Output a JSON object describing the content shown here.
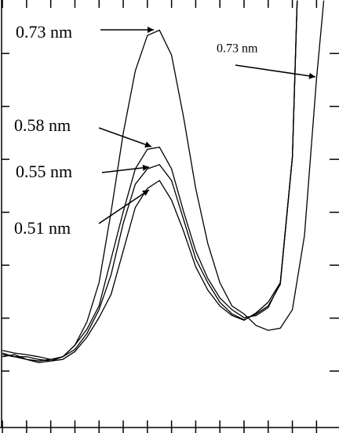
{
  "chart_data": {
    "type": "line",
    "xlim": [
      -0.1,
      13.93
    ],
    "ylim": [
      -0.17,
      8.01
    ],
    "xticks": [
      0,
      1,
      2,
      3,
      4,
      5,
      6,
      7,
      8,
      9,
      10,
      11,
      12,
      13
    ],
    "yticks": [
      1,
      2,
      3,
      4,
      5,
      6,
      7
    ],
    "series": [
      {
        "color": "#000000",
        "x": [
          0,
          0.5,
          1,
          1.5,
          2,
          2.5,
          3,
          3.5,
          4,
          4.5,
          5,
          5.5,
          6,
          6.5,
          7,
          7.5,
          8,
          8.5,
          9,
          9.5,
          10,
          10.5,
          11,
          11.5,
          12,
          12.5,
          13,
          13.3
        ],
        "values": [
          1.39,
          1.34,
          1.31,
          1.27,
          1.22,
          1.27,
          1.49,
          1.93,
          2.67,
          4.01,
          5.49,
          6.67,
          7.34,
          7.44,
          6.97,
          5.79,
          4.45,
          3.41,
          2.67,
          2.23,
          2.08,
          1.86,
          1.77,
          1.81,
          2.16,
          3.56,
          6.53,
          8.0
        ]
      },
      {
        "color": "#000000",
        "x": [
          0,
          0.5,
          1,
          1.5,
          2,
          2.5,
          3,
          3.5,
          4,
          4.5,
          5,
          5.5,
          6,
          6.5,
          7,
          7.5,
          8,
          8.5,
          9,
          9.5,
          10,
          10.5,
          11,
          11.5,
          12,
          12.2
        ],
        "values": [
          1.31,
          1.27,
          1.22,
          1.19,
          1.22,
          1.27,
          1.49,
          1.79,
          2.23,
          3.12,
          4.01,
          4.82,
          5.19,
          5.23,
          4.82,
          4.01,
          3.27,
          2.75,
          2.38,
          2.16,
          2.01,
          2.05,
          2.2,
          2.67,
          5.04,
          8.0
        ]
      },
      {
        "color": "#000000",
        "x": [
          0,
          0.5,
          1,
          1.5,
          2,
          2.5,
          3,
          3.5,
          4,
          4.5,
          5,
          5.5,
          6,
          6.5,
          7,
          7.5,
          8,
          8.5,
          9,
          9.5,
          10,
          10.5,
          11,
          11.5,
          12,
          12.2
        ],
        "values": [
          1.34,
          1.27,
          1.27,
          1.22,
          1.19,
          1.27,
          1.41,
          1.71,
          2.16,
          2.82,
          3.79,
          4.53,
          4.82,
          4.9,
          4.6,
          3.86,
          3.12,
          2.67,
          2.3,
          2.08,
          1.97,
          2.08,
          2.23,
          2.64,
          5.04,
          8.0
        ]
      },
      {
        "color": "#000000",
        "x": [
          0,
          0.5,
          1,
          1.5,
          2,
          2.5,
          3,
          3.5,
          4,
          4.5,
          5,
          5.5,
          6,
          6.5,
          7,
          7.5,
          8,
          8.5,
          9,
          9.5,
          10,
          10.5,
          11,
          11.5,
          12,
          12.2
        ],
        "values": [
          1.27,
          1.31,
          1.22,
          1.16,
          1.19,
          1.22,
          1.37,
          1.64,
          2.01,
          2.45,
          3.27,
          4.09,
          4.45,
          4.6,
          4.23,
          3.64,
          2.97,
          2.53,
          2.23,
          2.05,
          1.96,
          2.1,
          2.3,
          2.67,
          5.04,
          8.0
        ]
      }
    ],
    "annotations": [
      {
        "text": "0.73 nm"
      },
      {
        "text": "0.58 nm"
      },
      {
        "text": "0.55 nm"
      },
      {
        "text": "0.51 nm"
      },
      {
        "text": "0.73 nm"
      }
    ]
  }
}
